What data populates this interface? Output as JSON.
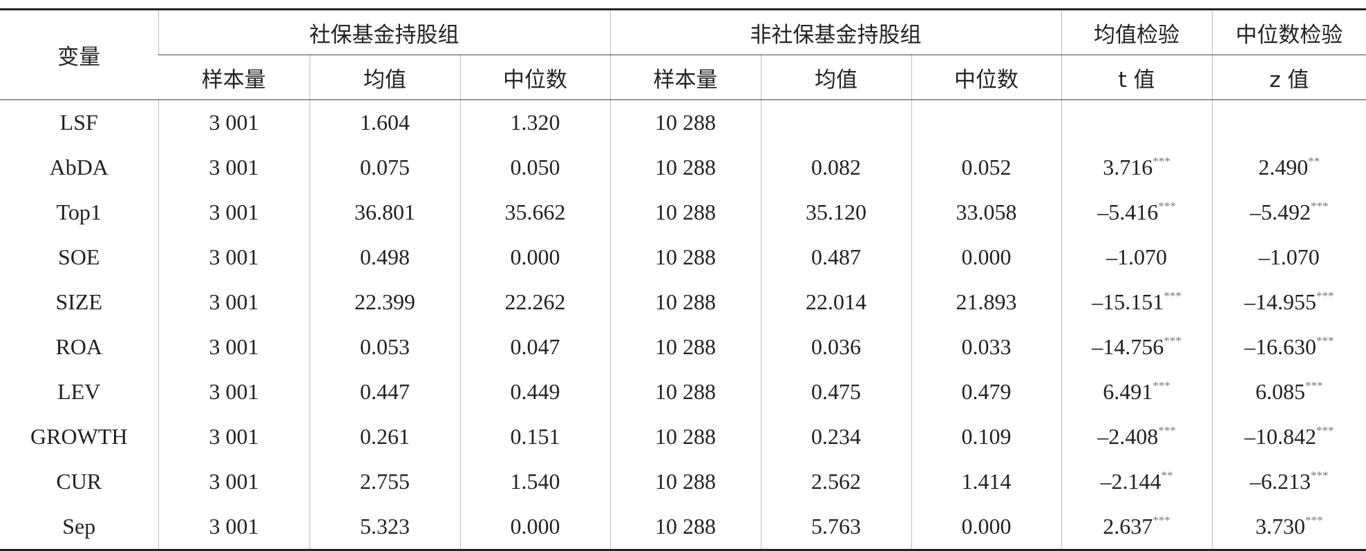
{
  "header": {
    "variable": "变量",
    "groups": [
      "社保基金持股组",
      "非社保基金持股组",
      "均值检验",
      "中位数检验"
    ],
    "subheaders": [
      "样本量",
      "均值",
      "中位数",
      "样本量",
      "均值",
      "中位数",
      "t 值",
      "z 值"
    ]
  },
  "rows": [
    {
      "name": "LSF",
      "cells": [
        "3 001",
        "1.604",
        "1.320",
        "10 288",
        null,
        null,
        null,
        null
      ]
    },
    {
      "name": "AbDA",
      "cells": [
        "3 001",
        "0.075",
        "0.050",
        "10 288",
        "0.082",
        "0.052",
        {
          "text": "3.716",
          "sup": "***"
        },
        {
          "text": "2.490",
          "sup": "**"
        }
      ]
    },
    {
      "name": "Top1",
      "cells": [
        "3 001",
        "36.801",
        "35.662",
        "10 288",
        "35.120",
        "33.058",
        {
          "text": "–5.416",
          "sup": "***"
        },
        {
          "text": "–5.492",
          "sup": "***"
        }
      ]
    },
    {
      "name": "SOE",
      "cells": [
        "3 001",
        "0.498",
        "0.000",
        "10 288",
        "0.487",
        "0.000",
        "–1.070",
        "–1.070"
      ]
    },
    {
      "name": "SIZE",
      "cells": [
        "3 001",
        "22.399",
        "22.262",
        "10 288",
        "22.014",
        "21.893",
        {
          "text": "–15.151",
          "sup": "***"
        },
        {
          "text": "–14.955",
          "sup": "***"
        }
      ]
    },
    {
      "name": "ROA",
      "cells": [
        "3 001",
        "0.053",
        "0.047",
        "10 288",
        "0.036",
        "0.033",
        {
          "text": "–14.756",
          "sup": "***"
        },
        {
          "text": "–16.630",
          "sup": "***"
        }
      ]
    },
    {
      "name": "LEV",
      "cells": [
        "3 001",
        "0.447",
        "0.449",
        "10 288",
        "0.475",
        "0.479",
        {
          "text": "6.491",
          "sup": "***"
        },
        {
          "text": "6.085",
          "sup": "***"
        }
      ]
    },
    {
      "name": "GROWTH",
      "cells": [
        "3 001",
        "0.261",
        "0.151",
        "10 288",
        "0.234",
        "0.109",
        {
          "text": "–2.408",
          "sup": "***"
        },
        {
          "text": "–10.842",
          "sup": "***"
        }
      ]
    },
    {
      "name": "CUR",
      "cells": [
        "3 001",
        "2.755",
        "1.540",
        "10 288",
        "2.562",
        "1.414",
        {
          "text": "–2.144",
          "sup": "**"
        },
        {
          "text": "–6.213",
          "sup": "***"
        }
      ]
    },
    {
      "name": "Sep",
      "cells": [
        "3 001",
        "5.323",
        "0.000",
        "10 288",
        "5.763",
        "0.000",
        {
          "text": "2.637",
          "sup": "***"
        },
        {
          "text": "3.730",
          "sup": "***"
        }
      ]
    }
  ]
}
